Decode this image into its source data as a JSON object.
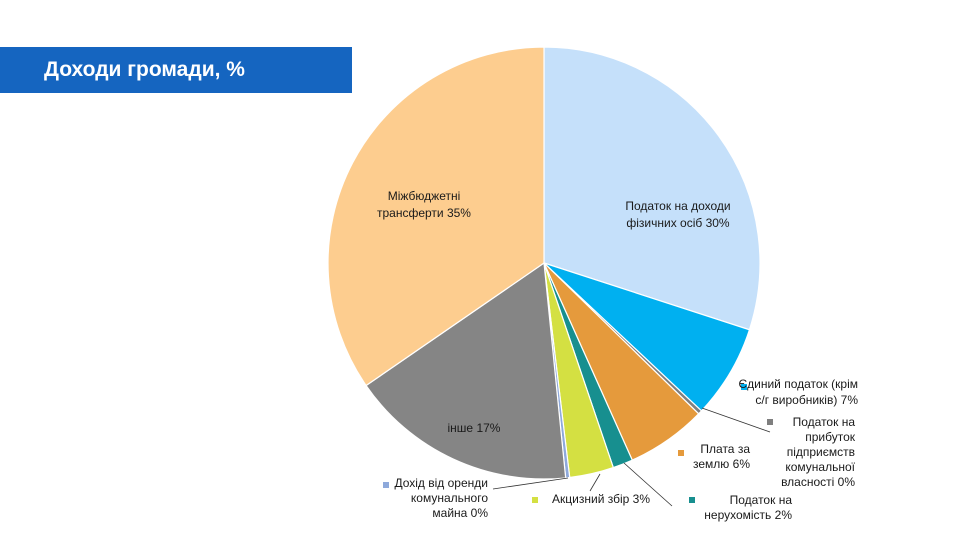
{
  "slide": {
    "title": "Доходи громади, %",
    "title_bar_color": "#1565c0"
  },
  "chart_data": {
    "type": "pie",
    "title": "Доходи громади, %",
    "start_angle_deg": 0,
    "direction": "clockwise",
    "slices": [
      {
        "label_lines": [
          "Податок на доходи",
          "фізичних  осіб 30%"
        ],
        "value": 30,
        "color": "#c5e0fa",
        "label_position": "inside",
        "legend_marker": false
      },
      {
        "label_lines": [
          "Єдиний податок (крім",
          "с/г виробників)  7%"
        ],
        "value": 7,
        "color": "#00b0f0",
        "label_position": "outside",
        "legend_marker": true
      },
      {
        "label_lines": [
          "Податок  на",
          "прибуток",
          "підприємств",
          "комунальної",
          "власності  0%"
        ],
        "value": 0.3,
        "color": "#7f7f7f",
        "label_position": "outside",
        "legend_marker": true
      },
      {
        "label_lines": [
          "Плата  за",
          "землю 6%"
        ],
        "value": 6,
        "color": "#e59a3c",
        "label_position": "outside",
        "legend_marker": true
      },
      {
        "label_lines": [
          "Податок  на",
          "нерухомість 2%"
        ],
        "value": 1.5,
        "color": "#178f8f",
        "label_position": "outside",
        "legend_marker": true
      },
      {
        "label_lines": [
          "Акцизний  збір 3%"
        ],
        "value": 3.3,
        "color": "#d4e042",
        "label_position": "outside",
        "legend_marker": true
      },
      {
        "label_lines": [
          "Дохід від оренди",
          "комунального",
          "майна  0%"
        ],
        "value": 0.3,
        "color": "#8ea9db",
        "label_position": "outside",
        "legend_marker": true
      },
      {
        "label_lines": [
          "інше 17%"
        ],
        "value": 17,
        "color": "#858585",
        "label_position": "inside",
        "legend_marker": false
      },
      {
        "label_lines": [
          "Міжбюджетні",
          "трансферти  35%"
        ],
        "value": 34.6,
        "color": "#fdcd8f",
        "label_position": "inside",
        "legend_marker": false
      }
    ]
  }
}
